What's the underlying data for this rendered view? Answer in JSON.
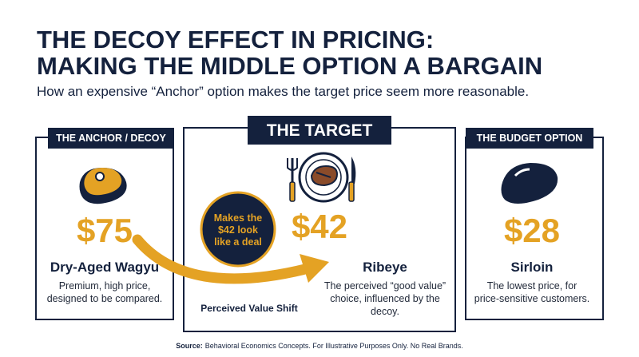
{
  "title_lines": [
    "THE DECOY EFFECT IN PRICING:",
    "MAKING THE MIDDLE OPTION A BARGAIN"
  ],
  "subtitle": "How an expensive “Anchor” option makes the target price seem more reasonable.",
  "options": [
    {
      "tag": "THE ANCHOR / DECOY",
      "price": "$75",
      "name": "Dry-Aged Wagyu",
      "description_lines": [
        "Premium, high price,",
        "designed to be compared."
      ]
    },
    {
      "tag": "THE TARGET",
      "price": "$42",
      "name": "Ribeye",
      "description_lines": [
        "The perceived “good value”",
        "choice, influenced by the",
        "decoy."
      ]
    },
    {
      "tag": "THE BUDGET OPTION",
      "price": "$28",
      "name": "Sirloin",
      "description_lines": [
        "The lowest price, for",
        "price-sensitive customers."
      ]
    }
  ],
  "callout": {
    "lines": [
      "Makes the",
      "$42 look",
      "like a deal"
    ]
  },
  "arrow_label": "Perceived Value Shift",
  "source": {
    "label": "Source:",
    "text": "Behavioral Economics Concepts. For Illustrative Purposes Only. No Real Brands."
  }
}
